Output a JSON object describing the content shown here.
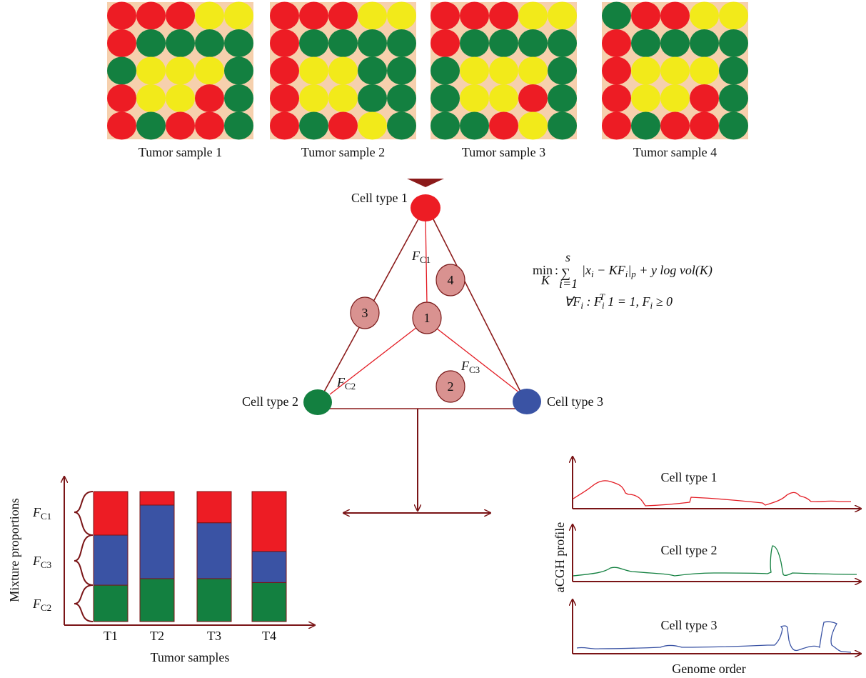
{
  "samples": [
    "Tumor sample 1",
    "Tumor sample 2",
    "Tumor sample 3",
    "Tumor sample 4"
  ],
  "cell_types": [
    "Cell type 1",
    "Cell type 2",
    "Cell type 3"
  ],
  "nodes": [
    "1",
    "2",
    "3",
    "4"
  ],
  "edge_labels": {
    "f_c1": [
      "F",
      "C1"
    ],
    "f_c2": [
      "F",
      "C2"
    ],
    "f_c3": [
      "F",
      "C3"
    ]
  },
  "formula": {
    "min": "min",
    "min_sub": "K",
    "colon": ":",
    "sum": "∑",
    "sum_sup": "s",
    "sum_sub": "i=1",
    "line1": [
      "|x",
      "i",
      " − KF",
      "i",
      "|",
      "p",
      " + y log vol(K)"
    ],
    "line2": [
      "∀F",
      "i",
      " : F",
      "i",
      "T",
      " 1 = 1, F",
      "i",
      " ≥ 0"
    ]
  },
  "bar_chart": {
    "categories": [
      "T1",
      "T2",
      "T3",
      "T4"
    ],
    "series": [
      {
        "color": "#138040",
        "values": [
          0.28,
          0.33,
          0.33,
          0.3
        ]
      },
      {
        "color": "#3a53a4",
        "values": [
          0.385,
          0.566,
          0.43,
          0.24
        ]
      },
      {
        "color": "#ed1c24",
        "values": [
          0.335,
          0.104,
          0.24,
          0.46
        ]
      }
    ],
    "x_label": "Tumor samples",
    "y_label": "Mixture proportions",
    "brace_labels": [
      [
        "F",
        "C1"
      ],
      [
        "F",
        "C3"
      ],
      [
        "F",
        "C2"
      ]
    ]
  },
  "profiles": {
    "y_label": "aCGH profile",
    "x_label": "Genome order",
    "panels": [
      "Cell type 1",
      "Cell type 2",
      "Cell type 3"
    ]
  }
}
